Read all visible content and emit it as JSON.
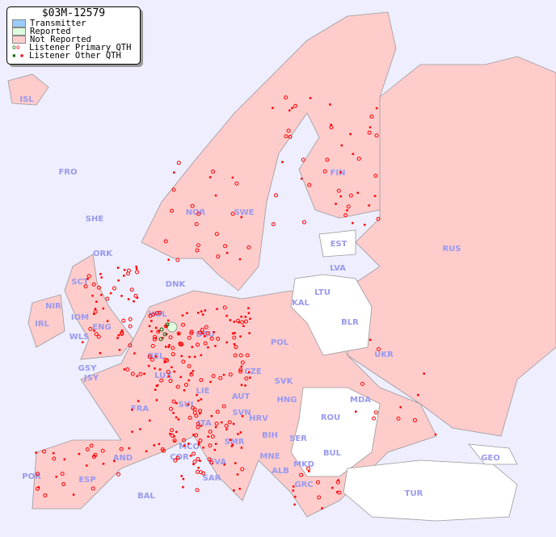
{
  "title": "$03M-12579",
  "legend": [
    {
      "label": "Transmitter",
      "color": "#99ccff"
    },
    {
      "label": "Reported",
      "color": "#ddffdd"
    },
    {
      "label": "Not Reported",
      "color": "#ffcccc"
    },
    {
      "label": "Listener Primary QTH",
      "marker": "circle",
      "colors": [
        "#006600",
        "#ff0000"
      ]
    },
    {
      "label": "Listener Other QTH",
      "marker": "square",
      "colors": [
        "#006600",
        "#ff0000"
      ]
    }
  ],
  "colors": {
    "sea": "#eeeeff",
    "not_reported": "#ffcccc",
    "no_data": "#ffffff",
    "reported": "#ddffdd",
    "listener": "#ff0000",
    "label": "#9999ee"
  },
  "countries": [
    "ISL",
    "FRO",
    "SHE",
    "ORK",
    "NOR",
    "SWE",
    "FIN",
    "RUS",
    "EST",
    "LVA",
    "LTU",
    "KAL",
    "BLR",
    "DNK",
    "SCT",
    "NIR",
    "IOM",
    "IRL",
    "WLS",
    "ENG",
    "HOL",
    "BEL",
    "DEU",
    "POL",
    "UKR",
    "CZE",
    "SVK",
    "LUX",
    "GSY",
    "JSY",
    "FRA",
    "SUI",
    "LIE",
    "AUT",
    "HNG",
    "MDA",
    "ROU",
    "SVN",
    "HRV",
    "ITA",
    "BIH",
    "SER",
    "BUL",
    "GEO",
    "MCO",
    "COR",
    "CVA",
    "SMR",
    "MNE",
    "MKD",
    "ALB",
    "AND",
    "POR",
    "ESP",
    "SAR",
    "BAL",
    "GRC",
    "TUR"
  ]
}
